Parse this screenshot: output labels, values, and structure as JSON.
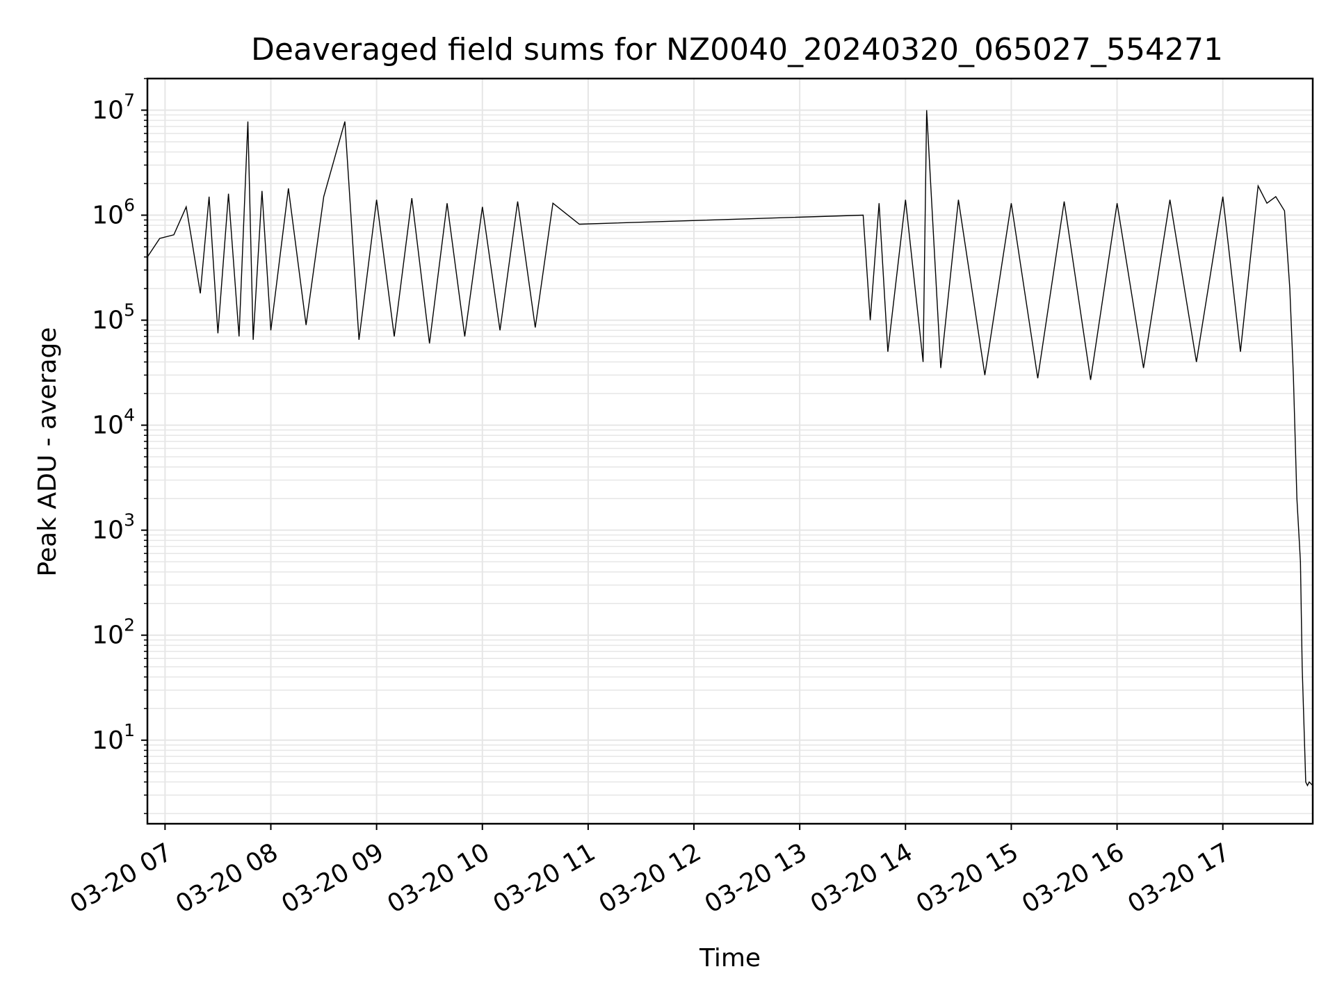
{
  "chart_data": {
    "type": "line",
    "title": "Deaveraged field sums for NZ0040_20240320_065027_554271",
    "xlabel": "Time",
    "ylabel": "Peak ADU - average",
    "yscale": "log",
    "ylim": [
      1.6,
      20000000
    ],
    "xlim": [
      "2024-03-20 06:50",
      "2024-03-20 17:51"
    ],
    "grid": true,
    "line_color": "#000000",
    "grid_color": "#e6e6e6",
    "x_ticks": [
      "03-20 07",
      "03-20 08",
      "03-20 09",
      "03-20 10",
      "03-20 11",
      "03-20 12",
      "03-20 13",
      "03-20 14",
      "03-20 15",
      "03-20 16",
      "03-20 17"
    ],
    "y_ticks": [
      {
        "value": 10,
        "base": "10",
        "exp": "1"
      },
      {
        "value": 100,
        "base": "10",
        "exp": "2"
      },
      {
        "value": 1000,
        "base": "10",
        "exp": "3"
      },
      {
        "value": 10000,
        "base": "10",
        "exp": "4"
      },
      {
        "value": 100000,
        "base": "10",
        "exp": "5"
      },
      {
        "value": 1000000,
        "base": "10",
        "exp": "6"
      },
      {
        "value": 10000000,
        "base": "10",
        "exp": "7"
      }
    ],
    "series": [
      {
        "x": [
          "2024-03-20 06:50",
          "2024-03-20 06:57",
          "2024-03-20 07:05",
          "2024-03-20 07:12",
          "2024-03-20 07:15",
          "2024-03-20 07:20",
          "2024-03-20 07:25",
          "2024-03-20 07:30",
          "2024-03-20 07:36",
          "2024-03-20 07:42",
          "2024-03-20 07:47",
          "2024-03-20 07:50",
          "2024-03-20 07:55",
          "2024-03-20 08:00",
          "2024-03-20 08:10",
          "2024-03-20 08:20",
          "2024-03-20 08:30",
          "2024-03-20 08:42",
          "2024-03-20 08:50",
          "2024-03-20 09:00",
          "2024-03-20 09:10",
          "2024-03-20 09:20",
          "2024-03-20 09:30",
          "2024-03-20 09:40",
          "2024-03-20 09:50",
          "2024-03-20 10:00",
          "2024-03-20 10:10",
          "2024-03-20 10:20",
          "2024-03-20 10:30",
          "2024-03-20 10:40",
          "2024-03-20 10:55",
          "2024-03-20 13:36",
          "2024-03-20 13:40",
          "2024-03-20 13:45",
          "2024-03-20 13:50",
          "2024-03-20 14:00",
          "2024-03-20 14:10",
          "2024-03-20 14:12",
          "2024-03-20 14:20",
          "2024-03-20 14:30",
          "2024-03-20 14:45",
          "2024-03-20 15:00",
          "2024-03-20 15:15",
          "2024-03-20 15:30",
          "2024-03-20 15:45",
          "2024-03-20 16:00",
          "2024-03-20 16:15",
          "2024-03-20 16:30",
          "2024-03-20 16:45",
          "2024-03-20 17:00",
          "2024-03-20 17:10",
          "2024-03-20 17:20",
          "2024-03-20 17:25",
          "2024-03-20 17:30",
          "2024-03-20 17:35",
          "2024-03-20 17:38",
          "2024-03-20 17:40",
          "2024-03-20 17:42",
          "2024-03-20 17:44",
          "2024-03-20 17:45",
          "2024-03-20 17:47",
          "2024-03-20 17:48",
          "2024-03-20 17:49",
          "2024-03-20 17:51"
        ],
        "y": [
          400000,
          600000,
          650000,
          1200000,
          600000,
          180000,
          1500000,
          75000,
          1600000,
          70000,
          7800000,
          65000,
          1700000,
          80000,
          1800000,
          90000,
          1500000,
          7800000,
          65000,
          1400000,
          70000,
          1450000,
          60000,
          1300000,
          70000,
          1200000,
          80000,
          1350000,
          85000,
          1300000,
          820000,
          1000000,
          100000,
          1300000,
          50000,
          1400000,
          40000,
          10000000,
          35000,
          1400000,
          30000,
          1300000,
          28000,
          1350000,
          27000,
          1300000,
          35000,
          1400000,
          40000,
          1500000,
          50000,
          1900000,
          1300000,
          1500000,
          1100000,
          200000,
          30000,
          2000,
          500,
          50,
          4,
          3.7,
          4,
          3.7
        ]
      }
    ]
  }
}
